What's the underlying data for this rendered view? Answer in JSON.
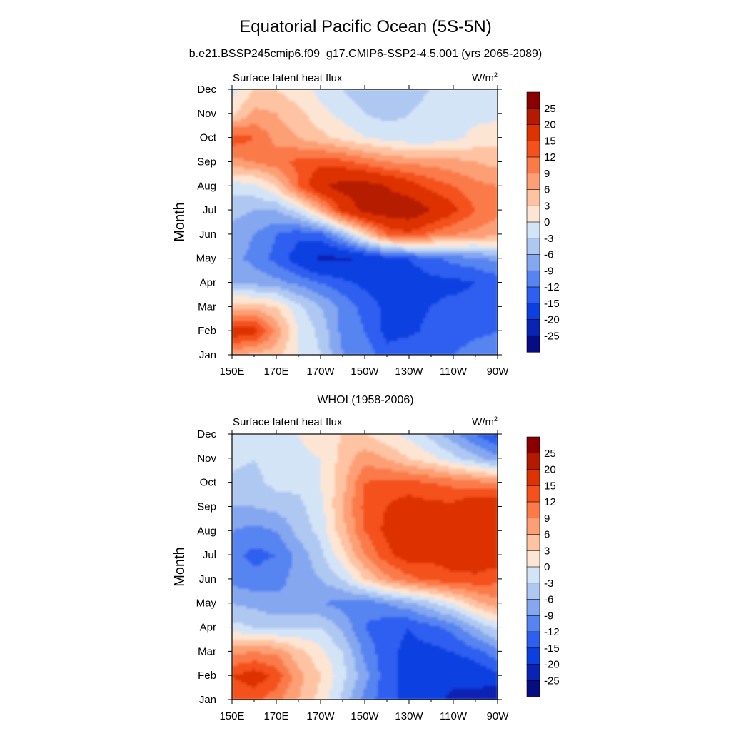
{
  "figure": {
    "title": "Equatorial Pacific Ocean (5S-5N)",
    "subtitle_top": "b.e21.BSSP245cmip6.f09_g17.CMIP6-SSP2-4.5.001 (yrs 2065-2089)",
    "subtitle_bottom": "WHOI (1958-2006)"
  },
  "chart_data": [
    {
      "type": "heatmap",
      "variable": "Surface latent heat flux",
      "units": "W/m",
      "units_sup": "2",
      "ylabel": "Month",
      "x_ticks": [
        "150E",
        "170E",
        "170W",
        "150W",
        "130W",
        "110W",
        "90W"
      ],
      "x_range_lon_east": [
        150,
        270
      ],
      "y_ticks": [
        "Jan",
        "Feb",
        "Mar",
        "Apr",
        "May",
        "Jun",
        "Jul",
        "Aug",
        "Sep",
        "Oct",
        "Nov",
        "Dec"
      ],
      "colorbar_labels": [
        "25",
        "20",
        "15",
        "12",
        "9",
        "6",
        "3",
        "0",
        "-3",
        "-6",
        "-9",
        "-12",
        "-15",
        "-20",
        "-25"
      ],
      "colorbar_colors": [
        "#8a0000",
        "#b51a00",
        "#dd3300",
        "#f4511d",
        "#fb7a48",
        "#fd9f75",
        "#fec3a2",
        "#fde5d3",
        "#d4e4f7",
        "#afc8f2",
        "#85a7f0",
        "#5684f0",
        "#2d5ff0",
        "#0c3fe0",
        "#0a23b4",
        "#060c82"
      ],
      "grid_x": [
        150,
        160,
        170,
        180,
        190,
        200,
        210,
        220,
        230,
        240,
        250,
        260,
        270
      ],
      "grid_y": [
        "Jan",
        "Feb",
        "Mar",
        "Apr",
        "May",
        "Jun",
        "Jul",
        "Aug",
        "Sep",
        "Oct",
        "Nov",
        "Dec"
      ],
      "values": [
        [
          6,
          5,
          4,
          0,
          -3,
          -9,
          -10,
          -14,
          -12,
          -12,
          -12,
          -10,
          -10
        ],
        [
          18,
          17,
          8,
          0,
          -4,
          -10,
          -12,
          -16,
          -16,
          -14,
          -14,
          -13,
          -12
        ],
        [
          5,
          5,
          3,
          -2,
          -6,
          -10,
          -13,
          -16,
          -16,
          -15,
          -14,
          -14,
          -12
        ],
        [
          -6,
          -7,
          -8,
          -10,
          -12,
          -14,
          -16,
          -17,
          -17,
          -16,
          -16,
          -15,
          -14
        ],
        [
          -8,
          -10,
          -13,
          -17,
          -21,
          -21,
          -19,
          -17,
          -15,
          -13,
          -11,
          -10,
          -8
        ],
        [
          -7,
          -9,
          -12,
          -14,
          -13,
          -6,
          3,
          12,
          14,
          11,
          9,
          8,
          7
        ],
        [
          -5,
          -6,
          -6,
          -2,
          6,
          16,
          22,
          23,
          24,
          20,
          16,
          12,
          10
        ],
        [
          -2,
          -1,
          3,
          12,
          19,
          22,
          22,
          20,
          17,
          14,
          12,
          10,
          9
        ],
        [
          8,
          9,
          11,
          13,
          14,
          13,
          11,
          9,
          8,
          8,
          7,
          6,
          5
        ],
        [
          14,
          12,
          8,
          6,
          4,
          2,
          0,
          -1,
          -2,
          -2,
          -1,
          1,
          2
        ],
        [
          2,
          7,
          6,
          4,
          1,
          -1,
          -3,
          -4,
          -3,
          -2,
          -1,
          -1,
          -1
        ],
        [
          -1,
          3,
          3,
          1,
          -1,
          -3,
          -5,
          -5,
          -4,
          -3,
          -3,
          -2,
          -1
        ]
      ]
    },
    {
      "type": "heatmap",
      "variable": "Surface latent heat flux",
      "units": "W/m",
      "units_sup": "2",
      "ylabel": "Month",
      "x_ticks": [
        "150E",
        "170E",
        "170W",
        "150W",
        "130W",
        "110W",
        "90W"
      ],
      "x_range_lon_east": [
        150,
        270
      ],
      "y_ticks": [
        "Jan",
        "Feb",
        "Mar",
        "Apr",
        "May",
        "Jun",
        "Jul",
        "Aug",
        "Sep",
        "Oct",
        "Nov",
        "Dec"
      ],
      "colorbar_labels": [
        "25",
        "20",
        "15",
        "12",
        "9",
        "6",
        "3",
        "0",
        "-3",
        "-6",
        "-9",
        "-12",
        "-15",
        "-20",
        "-25"
      ],
      "colorbar_colors": [
        "#8a0000",
        "#b51a00",
        "#dd3300",
        "#f4511d",
        "#fb7a48",
        "#fd9f75",
        "#fec3a2",
        "#fde5d3",
        "#d4e4f7",
        "#afc8f2",
        "#85a7f0",
        "#5684f0",
        "#2d5ff0",
        "#0c3fe0",
        "#0a23b4",
        "#060c82"
      ],
      "grid_x": [
        150,
        160,
        170,
        180,
        190,
        200,
        210,
        220,
        230,
        240,
        250,
        260,
        270
      ],
      "grid_y": [
        "Jan",
        "Feb",
        "Mar",
        "Apr",
        "May",
        "Jun",
        "Jul",
        "Aug",
        "Sep",
        "Oct",
        "Nov",
        "Dec"
      ],
      "values": [
        [
          12,
          13,
          10,
          6,
          2,
          -4,
          -10,
          -14,
          -16,
          -18,
          -21,
          -22,
          -25
        ],
        [
          15,
          17,
          14,
          7,
          3,
          -2,
          -8,
          -14,
          -16,
          -19,
          -19,
          -18,
          -16
        ],
        [
          8,
          9,
          8,
          4,
          1,
          -3,
          -10,
          -14,
          -16,
          -16,
          -15,
          -13,
          -10
        ],
        [
          -2,
          -3,
          -4,
          -3,
          -3,
          -7,
          -12,
          -14,
          -15,
          -13,
          -11,
          -6,
          -2
        ],
        [
          -6,
          -7,
          -8,
          -9,
          -9,
          -10,
          -11,
          -9,
          -7,
          -4,
          0,
          5,
          8
        ],
        [
          -10,
          -11,
          -10,
          -8,
          -6,
          -3,
          3,
          8,
          11,
          13,
          14,
          14,
          13
        ],
        [
          -11,
          -13,
          -12,
          -8,
          -4,
          2,
          9,
          14,
          17,
          16,
          17,
          18,
          17
        ],
        [
          -9,
          -10,
          -9,
          -5,
          -2,
          5,
          12,
          16,
          18,
          17,
          18,
          18,
          18
        ],
        [
          -6,
          -6,
          -5,
          -4,
          -1,
          6,
          13,
          15,
          17,
          16,
          16,
          19,
          20
        ],
        [
          -4,
          -4,
          -2,
          -2,
          0,
          5,
          12,
          13,
          13,
          12,
          11,
          10,
          9
        ],
        [
          -2,
          -3,
          -1,
          -1,
          0,
          4,
          8,
          6,
          3,
          1,
          -2,
          -5,
          -8
        ],
        [
          -3,
          -3,
          -2,
          0,
          2,
          3,
          3,
          1,
          -1,
          -4,
          -8,
          -12,
          -16
        ]
      ]
    }
  ]
}
